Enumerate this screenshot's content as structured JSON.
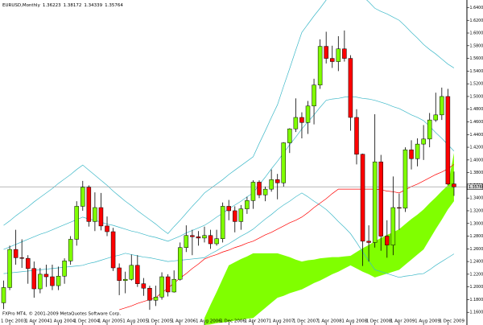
{
  "chart_data": {
    "type": "candlestick",
    "title": "EURUSD,Monthly",
    "footer": "FXPro MT4, © 2001-2009 MetaQuotes Software Corp.",
    "categories": [
      null,
      "1 Dec 2003",
      null,
      null,
      null,
      "1 Apr 2004",
      null,
      null,
      null,
      "1 Aug 2004",
      null,
      null,
      null,
      "1 Dec 2004",
      null,
      null,
      null,
      "1 Apr 2005",
      null,
      null,
      null,
      "1 Aug 2005",
      null,
      null,
      null,
      "1 Dec 2005",
      null,
      null,
      null,
      "1 Apr 2006",
      null,
      null,
      null,
      "1 Aug 2006",
      null,
      null,
      null,
      "1 Dec 2006",
      null,
      null,
      null,
      "1 Apr 2007",
      null,
      null,
      null,
      "1 Aug 2007",
      null,
      null,
      null,
      "1 Dec 2007",
      null,
      null,
      null,
      "1 Apr 2008",
      null,
      null,
      null,
      "1 Aug 2008",
      null,
      null,
      null,
      "1 Dec 2008",
      null,
      null,
      null,
      "1 Apr 2009",
      null,
      null,
      null,
      "1 Aug 2009",
      null,
      null,
      null,
      "1 Dec 2009",
      null
    ],
    "open": [
      1.175,
      1.199,
      1.259,
      1.246,
      1.245,
      1.229,
      1.197,
      1.22,
      1.216,
      1.202,
      1.217,
      1.241,
      1.275,
      1.327,
      1.357,
      1.303,
      1.325,
      1.296,
      1.287,
      1.23,
      1.21,
      1.212,
      1.234,
      1.205,
      1.198,
      1.179,
      1.184,
      1.216,
      1.192,
      1.212,
      1.262,
      1.281,
      1.279,
      1.277,
      1.281,
      1.268,
      1.276,
      1.327,
      1.32,
      1.303,
      1.323,
      1.336,
      1.365,
      1.345,
      1.354,
      1.369,
      1.364,
      1.427,
      1.449,
      1.467,
      1.459,
      1.485,
      1.518,
      1.579,
      1.56,
      1.555,
      1.575,
      1.56,
      1.467,
      1.409,
      1.272,
      1.27,
      1.397,
      1.28,
      1.266,
      1.325,
      1.324,
      1.416,
      1.402,
      1.425,
      1.433,
      1.463,
      1.471,
      1.5,
      1.36223
    ],
    "high": [
      1.21,
      1.265,
      1.29,
      1.275,
      1.25,
      1.24,
      1.23,
      1.235,
      1.235,
      1.232,
      1.245,
      1.28,
      1.335,
      1.367,
      1.36,
      1.349,
      1.348,
      1.311,
      1.293,
      1.237,
      1.224,
      1.251,
      1.25,
      1.214,
      1.202,
      1.202,
      1.223,
      1.22,
      1.226,
      1.27,
      1.297,
      1.29,
      1.288,
      1.295,
      1.29,
      1.29,
      1.333,
      1.337,
      1.327,
      1.329,
      1.342,
      1.368,
      1.368,
      1.358,
      1.385,
      1.378,
      1.428,
      1.45,
      1.497,
      1.475,
      1.493,
      1.528,
      1.59,
      1.602,
      1.58,
      1.595,
      1.604,
      1.565,
      1.48,
      1.41,
      1.297,
      1.472,
      1.408,
      1.305,
      1.374,
      1.347,
      1.42,
      1.431,
      1.434,
      1.455,
      1.474,
      1.506,
      1.514,
      1.512,
      1.38172
    ],
    "low": [
      1.165,
      1.195,
      1.235,
      1.23,
      1.205,
      1.183,
      1.19,
      1.2,
      1.195,
      1.195,
      1.205,
      1.235,
      1.265,
      1.32,
      1.295,
      1.288,
      1.289,
      1.28,
      1.225,
      1.187,
      1.19,
      1.21,
      1.2,
      1.186,
      1.164,
      1.17,
      1.18,
      1.185,
      1.191,
      1.21,
      1.255,
      1.25,
      1.265,
      1.27,
      1.26,
      1.265,
      1.27,
      1.305,
      1.286,
      1.29,
      1.315,
      1.323,
      1.34,
      1.335,
      1.35,
      1.338,
      1.358,
      1.411,
      1.444,
      1.434,
      1.441,
      1.456,
      1.512,
      1.552,
      1.545,
      1.54,
      1.555,
      1.446,
      1.393,
      1.233,
      1.24,
      1.262,
      1.257,
      1.246,
      1.25,
      1.29,
      1.318,
      1.385,
      1.39,
      1.4,
      1.42,
      1.46,
      1.463,
      1.36,
      1.34339
    ],
    "close": [
      1.199,
      1.259,
      1.246,
      1.245,
      1.229,
      1.197,
      1.22,
      1.216,
      1.202,
      1.217,
      1.241,
      1.275,
      1.327,
      1.357,
      1.303,
      1.325,
      1.296,
      1.287,
      1.23,
      1.21,
      1.212,
      1.234,
      1.205,
      1.198,
      1.179,
      1.184,
      1.216,
      1.192,
      1.212,
      1.262,
      1.281,
      1.279,
      1.277,
      1.281,
      1.268,
      1.276,
      1.327,
      1.32,
      1.303,
      1.323,
      1.336,
      1.365,
      1.345,
      1.354,
      1.369,
      1.364,
      1.427,
      1.449,
      1.467,
      1.459,
      1.485,
      1.518,
      1.579,
      1.56,
      1.555,
      1.575,
      1.56,
      1.467,
      1.409,
      1.272,
      1.27,
      1.397,
      1.28,
      1.266,
      1.325,
      1.324,
      1.416,
      1.402,
      1.425,
      1.433,
      1.463,
      1.471,
      1.5,
      1.362,
      1.35764
    ],
    "up_color": "#80ff00",
    "down_color": "#ff0000",
    "ylim": [
      1.14,
      1.652
    ],
    "yticks": [
      {
        "value": 1.16,
        "label": "1.16000"
      },
      {
        "value": 1.18,
        "label": "1.18000"
      },
      {
        "value": 1.2,
        "label": "1.20000"
      },
      {
        "value": 1.22,
        "label": "1.22000"
      },
      {
        "value": 1.24,
        "label": "1.24000"
      },
      {
        "value": 1.26,
        "label": "1.26000"
      },
      {
        "value": 1.28,
        "label": "1.28000"
      },
      {
        "value": 1.3,
        "label": "1.30000"
      },
      {
        "value": 1.32,
        "label": "1.32000"
      },
      {
        "value": 1.34,
        "label": "1.34000"
      },
      {
        "value": 1.36,
        "label": "1.36000"
      },
      {
        "value": 1.38,
        "label": "1.38000"
      },
      {
        "value": 1.4,
        "label": "1.40000"
      },
      {
        "value": 1.42,
        "label": "1.42000"
      },
      {
        "value": 1.44,
        "label": "1.44000"
      },
      {
        "value": 1.46,
        "label": "1.46000"
      },
      {
        "value": 1.48,
        "label": "1.48000"
      },
      {
        "value": 1.5,
        "label": "1.50000"
      },
      {
        "value": 1.52,
        "label": "1.52000"
      },
      {
        "value": 1.54,
        "label": "1.54000"
      },
      {
        "value": 1.56,
        "label": "1.56000"
      },
      {
        "value": 1.58,
        "label": "1.58000"
      },
      {
        "value": 1.6,
        "label": "1.60000"
      },
      {
        "value": 1.62,
        "label": "1.62000"
      },
      {
        "value": 1.64,
        "label": "1.64000"
      }
    ],
    "cloud": {
      "color": "#80ff00",
      "upper": [
        null,
        null,
        null,
        null,
        null,
        null,
        null,
        null,
        null,
        null,
        null,
        null,
        null,
        null,
        null,
        null,
        null,
        null,
        null,
        null,
        null,
        null,
        null,
        null,
        null,
        null,
        null,
        null,
        null,
        null,
        null,
        null,
        null,
        1.151,
        1.172,
        1.192,
        1.213,
        1.234,
        1.239,
        1.244,
        1.248,
        1.253,
        1.253,
        1.253,
        1.253,
        1.253,
        1.25,
        1.247,
        1.243,
        1.24,
        1.242,
        1.243,
        1.245,
        1.246,
        1.247,
        1.247,
        1.248,
        1.249,
        1.255,
        1.261,
        1.266,
        1.272,
        1.277,
        1.282,
        1.286,
        1.291,
        1.299,
        1.307,
        1.314,
        1.322,
        1.332,
        1.341,
        1.351,
        1.36,
        1.411
      ],
      "lower": [
        null,
        null,
        null,
        null,
        null,
        null,
        null,
        null,
        null,
        null,
        null,
        null,
        null,
        null,
        null,
        null,
        null,
        null,
        null,
        null,
        null,
        null,
        null,
        null,
        null,
        null,
        null,
        null,
        null,
        null,
        null,
        null,
        null,
        1.14,
        1.141,
        1.143,
        1.144,
        1.145,
        1.147,
        1.148,
        1.15,
        1.151,
        1.159,
        1.167,
        1.175,
        1.183,
        1.186,
        1.19,
        1.193,
        1.196,
        1.201,
        1.206,
        1.21,
        1.215,
        1.22,
        1.224,
        1.229,
        1.234,
        1.229,
        1.224,
        1.22,
        1.215,
        1.218,
        1.221,
        1.224,
        1.227,
        1.235,
        1.243,
        1.251,
        1.259,
        1.275,
        1.291,
        1.306,
        1.322,
        1.335
      ]
    },
    "lines": [
      {
        "color": "#3cb8c8",
        "values": [
          1.297,
          1.304,
          1.312,
          1.319,
          1.326,
          1.334,
          1.341,
          1.348,
          1.355,
          1.363,
          1.37,
          1.377,
          1.385,
          1.392,
          1.384,
          1.376,
          1.368,
          1.36,
          1.351,
          1.343,
          1.335,
          1.328,
          1.32,
          1.313,
          1.306,
          1.299,
          1.291,
          1.284,
          1.295,
          1.305,
          1.316,
          1.327,
          1.337,
          1.348,
          1.355,
          1.362,
          1.369,
          1.377,
          1.384,
          1.391,
          1.398,
          1.405,
          1.426,
          1.446,
          1.467,
          1.487,
          1.516,
          1.544,
          1.573,
          1.601,
          1.614,
          1.627,
          1.639,
          1.652,
          1.658,
          1.665,
          1.671,
          1.677,
          1.668,
          1.658,
          1.649,
          1.639,
          1.634,
          1.63,
          1.625,
          1.62,
          1.611,
          1.601,
          1.592,
          1.582,
          1.574,
          1.567,
          1.559,
          1.551,
          1.545
        ]
      },
      {
        "color": "#3cb8c8",
        "values": [
          1.259,
          1.263,
          1.267,
          1.271,
          1.275,
          1.279,
          1.283,
          1.286,
          1.29,
          1.294,
          1.298,
          1.302,
          1.306,
          1.31,
          1.307,
          1.305,
          1.302,
          1.299,
          1.297,
          1.294,
          1.291,
          1.288,
          1.286,
          1.283,
          1.28,
          1.278,
          1.275,
          1.272,
          1.276,
          1.28,
          1.285,
          1.289,
          1.293,
          1.297,
          1.303,
          1.31,
          1.316,
          1.323,
          1.329,
          1.335,
          1.342,
          1.348,
          1.361,
          1.373,
          1.386,
          1.398,
          1.411,
          1.424,
          1.436,
          1.449,
          1.46,
          1.471,
          1.483,
          1.494,
          1.496,
          1.497,
          1.499,
          1.5,
          1.499,
          1.497,
          1.496,
          1.494,
          1.491,
          1.488,
          1.484,
          1.481,
          1.476,
          1.471,
          1.467,
          1.462,
          1.453,
          1.443,
          1.434,
          1.424,
          1.414
        ]
      },
      {
        "color": "#3cb8c8",
        "values": [
          1.221,
          1.222,
          1.223,
          1.224,
          1.225,
          1.226,
          1.227,
          1.228,
          1.229,
          1.23,
          1.231,
          1.232,
          1.233,
          1.234,
          1.237,
          1.239,
          1.242,
          1.245,
          1.248,
          1.25,
          1.253,
          1.251,
          1.249,
          1.247,
          1.246,
          1.244,
          1.242,
          1.24,
          1.241,
          1.242,
          1.243,
          1.244,
          1.245,
          1.246,
          1.252,
          1.257,
          1.263,
          1.268,
          1.274,
          1.28,
          1.285,
          1.291,
          1.299,
          1.307,
          1.314,
          1.322,
          1.329,
          1.335,
          1.342,
          1.348,
          1.342,
          1.335,
          1.329,
          1.322,
          1.313,
          1.303,
          1.294,
          1.284,
          1.27,
          1.255,
          1.241,
          1.227,
          1.224,
          1.221,
          1.218,
          1.215,
          1.217,
          1.218,
          1.22,
          1.221,
          1.227,
          1.234,
          1.24,
          1.246,
          1.252
        ]
      },
      {
        "color": "#ff0000",
        "values": [
          null,
          null,
          null,
          null,
          null,
          null,
          null,
          null,
          null,
          null,
          null,
          null,
          null,
          null,
          null,
          null,
          null,
          null,
          null,
          1.164,
          1.167,
          1.17,
          1.174,
          1.177,
          1.18,
          1.183,
          1.191,
          1.198,
          1.206,
          1.214,
          1.221,
          1.229,
          1.236,
          1.244,
          1.248,
          1.251,
          1.255,
          1.258,
          1.262,
          1.265,
          1.269,
          1.272,
          1.277,
          1.282,
          1.286,
          1.291,
          1.296,
          1.301,
          1.305,
          1.31,
          1.317,
          1.325,
          1.332,
          1.339,
          1.347,
          1.354,
          1.354,
          1.354,
          1.354,
          1.354,
          1.354,
          1.354,
          1.353,
          1.351,
          1.35,
          1.348,
          1.353,
          1.358,
          1.362,
          1.367,
          1.372,
          1.377,
          1.381,
          1.386,
          1.393
        ]
      }
    ]
  }
}
